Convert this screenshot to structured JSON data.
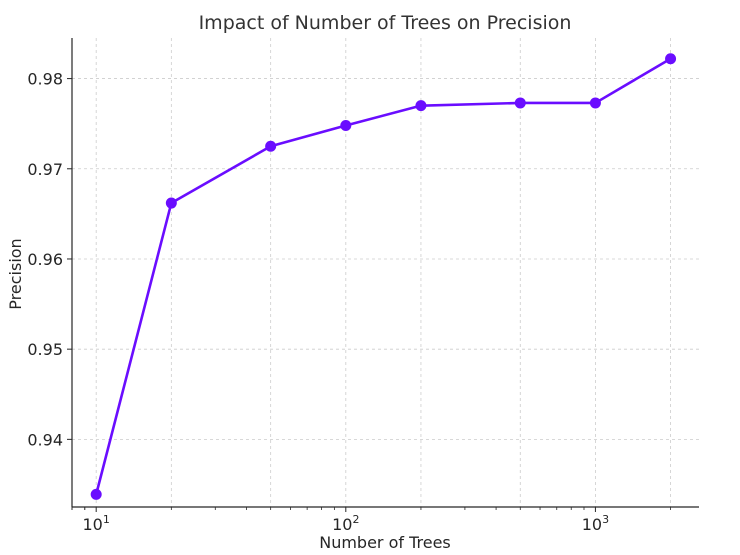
{
  "chart_data": {
    "type": "line",
    "title": "Impact of Number of Trees on Precision",
    "xlabel": "Number of Trees",
    "ylabel": "Precision",
    "x_scale": "log",
    "xlim": [
      8,
      2600
    ],
    "ylim": [
      0.9325,
      0.9845
    ],
    "grid": true,
    "line_color": "#6a0dff",
    "x_ticks": [
      {
        "value": 10,
        "base": "10",
        "exp": "1"
      },
      {
        "value": 100,
        "base": "10",
        "exp": "2"
      },
      {
        "value": 1000,
        "base": "10",
        "exp": "3"
      }
    ],
    "y_ticks": [
      {
        "value": 0.94,
        "label": "0.94"
      },
      {
        "value": 0.95,
        "label": "0.95"
      },
      {
        "value": 0.96,
        "label": "0.96"
      },
      {
        "value": 0.97,
        "label": "0.97"
      },
      {
        "value": 0.98,
        "label": "0.98"
      }
    ],
    "series": [
      {
        "x": [
          10,
          20,
          50,
          100,
          200,
          500,
          1000,
          2000
        ],
        "y": [
          0.9339,
          0.9662,
          0.9725,
          0.9748,
          0.977,
          0.9773,
          0.9773,
          0.9822
        ]
      }
    ]
  }
}
